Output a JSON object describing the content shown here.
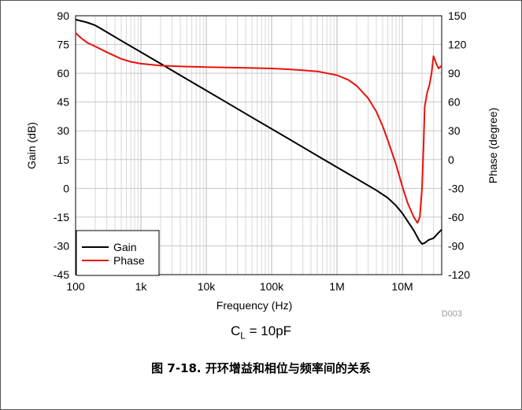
{
  "chart_data": {
    "type": "line",
    "xlabel": "Frequency (Hz)",
    "ylabel_left": "Gain (dB)",
    "ylabel_right": "Phase (degree)",
    "x_scale": "log",
    "xlim": [
      100,
      40000000
    ],
    "ylim_left": [
      -45,
      90
    ],
    "ylim_right": [
      -120,
      150
    ],
    "x_ticks": [
      100,
      1000,
      10000,
      100000,
      1000000,
      10000000
    ],
    "x_tick_labels": [
      "100",
      "1k",
      "10k",
      "100k",
      "1M",
      "10M"
    ],
    "y_left_ticks": [
      90,
      75,
      60,
      45,
      30,
      15,
      0,
      -15,
      -30,
      -45
    ],
    "y_right_ticks": [
      150,
      120,
      90,
      60,
      30,
      0,
      -30,
      -60,
      -90,
      -120
    ],
    "grid": true,
    "legend_position": "bottom-left",
    "figure_id": "D003",
    "series": [
      {
        "name": "Gain",
        "axis": "left",
        "color": "#000000",
        "x": [
          100,
          150,
          200,
          300,
          500,
          1000,
          2000,
          5000,
          10000,
          20000,
          50000,
          100000,
          200000,
          500000,
          1000000,
          2000000,
          4000000,
          6000000,
          8000000,
          10000000,
          12000000,
          15000000,
          18000000,
          20000000,
          22000000,
          25000000,
          30000000,
          35000000,
          40000000
        ],
        "values": [
          88,
          86.5,
          85,
          81.5,
          77,
          71,
          65,
          57,
          51,
          45,
          37,
          31,
          25,
          17,
          11,
          5,
          -1,
          -5,
          -9,
          -13,
          -17,
          -22,
          -27,
          -29,
          -28.5,
          -27,
          -26,
          -23.5,
          -21.5
        ]
      },
      {
        "name": "Phase",
        "axis": "right",
        "color": "#e8120c",
        "x": [
          100,
          120,
          150,
          200,
          300,
          500,
          700,
          1000,
          2000,
          5000,
          10000,
          20000,
          50000,
          100000,
          200000,
          500000,
          1000000,
          1500000,
          2000000,
          3000000,
          4000000,
          5000000,
          6000000,
          8000000,
          10000000,
          12000000,
          15000000,
          17000000,
          18500000,
          20000000,
          21000000,
          22000000,
          24000000,
          26000000,
          28000000,
          30000000,
          33000000,
          36000000,
          40000000
        ],
        "values": [
          132,
          127,
          122,
          118,
          112,
          105,
          102,
          100,
          98,
          97,
          96.5,
          96,
          95.5,
          95,
          94,
          92,
          88,
          83,
          77,
          64,
          50,
          35,
          20,
          -5,
          -28,
          -45,
          -60,
          -66,
          -60,
          -30,
          10,
          55,
          70,
          78,
          90,
          108,
          100,
          95,
          98
        ]
      }
    ]
  },
  "caption": {
    "prefix": "C",
    "subscript": "L",
    "suffix": " = 10pF"
  },
  "figure_title": "图 7-18. 开环增益和相位与频率间的关系"
}
